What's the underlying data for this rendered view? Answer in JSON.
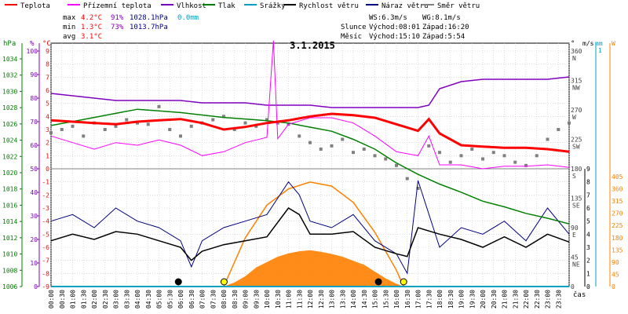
{
  "header": {
    "legend": [
      {
        "label": "Teplota",
        "color": "#ff0000"
      },
      {
        "label": "Přízemní teplota",
        "color": "#ff00ff"
      },
      {
        "label": "Vlhkost",
        "color": "#8000c0"
      },
      {
        "label": "Tlak",
        "color": "#008000"
      },
      {
        "label": "Srážky",
        "color": "#00a0c0"
      },
      {
        "label": "Rychlost větru",
        "color": "#000000"
      },
      {
        "label": "Náraz větru",
        "color": "#000080"
      },
      {
        "label": "Směr větru",
        "color": "#808080"
      }
    ],
    "stats": {
      "max": {
        "label": "max",
        "temp": "4.2°C",
        "hum": "91%",
        "press": "1028.1hPa",
        "rain": "0.0mm"
      },
      "min": {
        "label": "min",
        "temp": "1.3°C",
        "hum": "73%",
        "press": "1013.7hPa"
      },
      "avg": {
        "label": "avg",
        "temp": "3.1°C"
      }
    },
    "wind": {
      "ws": "WS:6.3m/s",
      "wg": "WG:8.1m/s"
    },
    "sun": {
      "label": "Slunce",
      "rise": "Východ:08:01",
      "set": "Západ:16:20"
    },
    "moon": {
      "label": "Měsíc",
      "rise": "Východ:15:10",
      "set": "Západ:5:54"
    }
  },
  "chart_data": {
    "type": "line",
    "title": "3.1.2015",
    "xlabel": "čas",
    "x_ticks": [
      "00:00",
      "00:30",
      "01:00",
      "01:30",
      "02:00",
      "02:30",
      "03:00",
      "03:30",
      "04:00",
      "04:30",
      "05:00",
      "05:30",
      "06:00",
      "06:30",
      "07:00",
      "07:30",
      "08:00",
      "08:30",
      "09:00",
      "09:30",
      "10:00",
      "10:30",
      "11:00",
      "11:30",
      "12:00",
      "12:30",
      "13:00",
      "13:30",
      "14:00",
      "14:30",
      "15:00",
      "15:30",
      "16:00",
      "16:30",
      "17:00",
      "17:30",
      "18:00",
      "18:30",
      "19:00",
      "19:30",
      "20:00",
      "20:30",
      "21:00",
      "21:30",
      "22:00",
      "22:30",
      "23:00",
      "23:30"
    ],
    "left_axes": [
      {
        "unit": "hPa",
        "color": "#008000",
        "ticks": [
          "1034",
          "1032",
          "1030",
          "1028",
          "1026",
          "1024",
          "1022",
          "1020",
          "1018",
          "1016",
          "1014",
          "1012",
          "1010",
          "1008",
          "1006"
        ]
      },
      {
        "unit": "%",
        "color": "#8000c0",
        "ticks": [
          "100",
          "90",
          "80",
          "70",
          "60",
          "50",
          "40",
          "30",
          "20",
          "10",
          "0"
        ]
      },
      {
        "unit": "°C",
        "color": "#ff0000",
        "ticks": [
          "9",
          "8",
          "7",
          "6",
          "5",
          "4",
          "3",
          "2",
          "1",
          "0",
          "-1",
          "-2",
          "-3",
          "-4",
          "-5",
          "-6",
          "-7",
          "-8",
          "-9"
        ]
      }
    ],
    "right_axes": [
      {
        "unit": "°",
        "color": "#000000",
        "ticks": [
          "360",
          "315",
          "270",
          "225",
          "180",
          "135",
          "90",
          "45",
          "0"
        ],
        "labels": [
          "N",
          "NW",
          "W",
          "SW",
          "S",
          "SE",
          "E",
          "NE",
          ""
        ]
      },
      {
        "unit": "m/s",
        "color": "#000000",
        "ticks": [
          "9",
          "8",
          "7",
          "6",
          "5",
          "4",
          "3",
          "2",
          "1",
          "0"
        ]
      },
      {
        "unit": "mm",
        "color": "#00a0c0",
        "ticks": [
          "1",
          "0"
        ]
      },
      {
        "unit": "W",
        "color": "#ff8000",
        "ticks": [
          "405",
          "360",
          "315",
          "270",
          "225",
          "180",
          "135",
          "90",
          "45",
          "0"
        ]
      }
    ],
    "series": [
      {
        "name": "Teplota",
        "unit": "°C",
        "color": "#ff0000",
        "x": [
          0,
          1,
          2,
          3,
          4,
          5,
          6,
          7,
          8,
          9,
          10,
          11,
          12,
          13,
          14,
          15,
          16,
          17,
          17.5,
          18,
          19,
          20,
          21,
          22,
          23,
          24
        ],
        "y": [
          3.7,
          3.6,
          3.5,
          3.4,
          3.6,
          3.7,
          3.8,
          3.5,
          3.0,
          3.2,
          3.5,
          3.7,
          4.0,
          4.2,
          4.1,
          3.9,
          3.4,
          2.9,
          3.8,
          2.7,
          1.8,
          1.7,
          1.6,
          1.6,
          1.5,
          1.3
        ]
      },
      {
        "name": "Přízemní teplota",
        "unit": "°C",
        "color": "#ff00ff",
        "x": [
          0,
          1,
          2,
          3,
          4,
          5,
          6,
          7,
          8,
          9,
          10,
          10.3,
          10.5,
          11,
          12,
          13,
          14,
          15,
          16,
          17,
          17.5,
          18,
          19,
          20,
          21,
          22,
          23,
          24
        ],
        "y": [
          2.5,
          2.0,
          1.5,
          2.0,
          1.8,
          2.2,
          1.8,
          1.0,
          1.3,
          2.0,
          2.4,
          9.8,
          2.3,
          3.4,
          3.9,
          3.9,
          3.5,
          2.5,
          1.3,
          1.0,
          2.5,
          0.3,
          0.3,
          0.0,
          0.2,
          0.2,
          0.3,
          0.1
        ]
      },
      {
        "name": "Vlhkost",
        "unit": "%",
        "color": "#8000c0",
        "x": [
          0,
          1,
          2,
          3,
          4,
          5,
          6,
          7,
          8,
          9,
          10,
          11,
          12,
          13,
          14,
          15,
          16,
          17,
          17.5,
          18,
          19,
          20,
          21,
          22,
          23,
          24
        ],
        "y": [
          82,
          81,
          80,
          79,
          79,
          79,
          79,
          78,
          78,
          78,
          77,
          77,
          77,
          76,
          76,
          76,
          76,
          76,
          77,
          84,
          87,
          88,
          88,
          88,
          88,
          89
        ]
      },
      {
        "name": "Tlak",
        "unit": "hPa",
        "color": "#008000",
        "x": [
          0,
          1,
          2,
          3,
          4,
          5,
          6,
          7,
          8,
          9,
          10,
          11,
          12,
          13,
          14,
          15,
          16,
          17,
          18,
          19,
          20,
          21,
          22,
          23,
          24
        ],
        "y": [
          1025.8,
          1026.3,
          1026.8,
          1027.3,
          1027.8,
          1027.6,
          1027.4,
          1027.1,
          1026.8,
          1026.6,
          1026.4,
          1026.1,
          1025.6,
          1025.1,
          1024.1,
          1022.9,
          1021.2,
          1019.8,
          1018.6,
          1017.6,
          1016.5,
          1015.8,
          1015.0,
          1014.4,
          1013.7
        ]
      },
      {
        "name": "Srážky",
        "unit": "mm",
        "color": "#00a0c0",
        "x": [
          0,
          24
        ],
        "y": [
          0.0,
          0.0
        ]
      },
      {
        "name": "Rychlost větru",
        "unit": "m/s",
        "color": "#000000",
        "x": [
          0,
          1,
          2,
          3,
          4,
          5,
          6,
          6.5,
          7,
          8,
          9,
          10,
          11,
          11.5,
          12,
          13,
          14,
          15,
          16,
          16.5,
          17,
          18,
          19,
          20,
          21,
          22,
          23,
          24
        ],
        "y": [
          3.5,
          4.0,
          3.6,
          4.2,
          4.0,
          3.5,
          3.0,
          2.0,
          2.7,
          3.2,
          3.5,
          3.8,
          6.0,
          5.5,
          4.0,
          4.0,
          4.2,
          3.0,
          2.5,
          2.3,
          4.5,
          4.0,
          3.6,
          3.0,
          3.8,
          3.0,
          4.0,
          3.4
        ]
      },
      {
        "name": "Náraz větru",
        "unit": "m/s",
        "color": "#000080",
        "x": [
          0,
          1,
          2,
          3,
          4,
          5,
          6,
          6.5,
          7,
          8,
          9,
          10,
          11,
          11.5,
          12,
          13,
          14,
          15,
          16,
          16.5,
          17,
          18,
          19,
          20,
          21,
          22,
          23,
          24
        ],
        "y": [
          5.0,
          5.5,
          4.5,
          6.0,
          5.0,
          4.5,
          3.5,
          1.5,
          3.5,
          4.5,
          5.0,
          5.5,
          8.0,
          7.0,
          5.0,
          4.5,
          5.5,
          3.5,
          2.5,
          1.0,
          8.1,
          3.0,
          4.5,
          4.0,
          5.0,
          3.5,
          6.0,
          4.0
        ]
      },
      {
        "name": "Slunce",
        "unit": "W",
        "color": "#ff8000",
        "x": [
          8.0,
          8.5,
          9,
          9.5,
          10,
          10.5,
          11,
          11.5,
          12,
          12.5,
          13,
          13.5,
          14,
          14.5,
          15,
          15.5,
          16,
          16.33
        ],
        "y": [
          0,
          15,
          38,
          70,
          90,
          110,
          122,
          130,
          134,
          128,
          120,
          110,
          95,
          80,
          55,
          30,
          10,
          0
        ]
      },
      {
        "name": "Sluneční dráha",
        "unit": "W",
        "color": "#ff8000",
        "x": [
          8.0,
          9,
          10,
          11,
          12,
          13,
          14,
          15,
          16,
          16.33
        ],
        "y": [
          0,
          180,
          300,
          360,
          385,
          370,
          310,
          200,
          60,
          0
        ]
      }
    ],
    "wind_direction": {
      "name": "Směr větru",
      "unit": "°",
      "color": "#808080",
      "x": [
        0,
        0.5,
        1,
        1.5,
        2,
        2.5,
        3,
        3.5,
        4,
        4.5,
        5,
        5.5,
        6,
        6.5,
        7,
        7.5,
        8,
        8.5,
        9,
        9.5,
        10,
        10.5,
        11,
        11.5,
        12,
        12.5,
        13,
        13.5,
        14,
        14.5,
        15,
        15.5,
        16,
        16.5,
        17,
        17.5,
        18,
        18.5,
        19,
        19.5,
        20,
        20.5,
        21,
        21.5,
        22,
        22.5,
        23,
        23.5,
        24
      ],
      "y": [
        235,
        240,
        245,
        230,
        250,
        240,
        245,
        255,
        250,
        248,
        275,
        240,
        230,
        245,
        250,
        255,
        260,
        240,
        250,
        245,
        255,
        250,
        248,
        230,
        220,
        210,
        215,
        225,
        205,
        210,
        200,
        195,
        185,
        165,
        150,
        215,
        205,
        190,
        200,
        210,
        195,
        205,
        200,
        190,
        185,
        200,
        225,
        240,
        250
      ]
    },
    "sun_events": [
      {
        "time": 8.0167,
        "type": "sunrise"
      },
      {
        "time": 16.333,
        "type": "sunset"
      }
    ],
    "moon_events": [
      {
        "time": 5.9,
        "type": "moonset"
      },
      {
        "time": 15.1667,
        "type": "moonrise"
      }
    ]
  }
}
